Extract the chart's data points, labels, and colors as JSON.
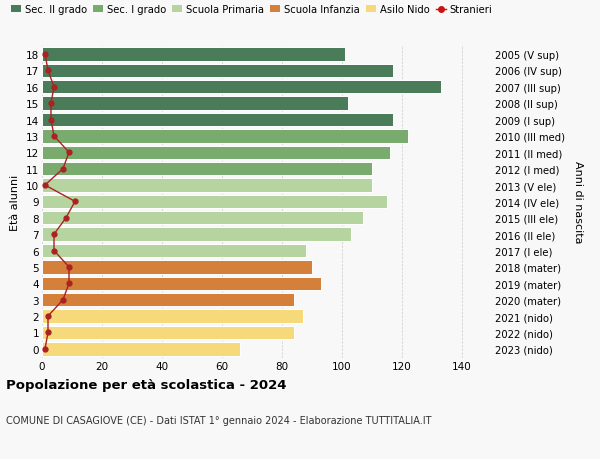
{
  "ages": [
    18,
    17,
    16,
    15,
    14,
    13,
    12,
    11,
    10,
    9,
    8,
    7,
    6,
    5,
    4,
    3,
    2,
    1,
    0
  ],
  "right_labels": [
    "2005 (V sup)",
    "2006 (IV sup)",
    "2007 (III sup)",
    "2008 (II sup)",
    "2009 (I sup)",
    "2010 (III med)",
    "2011 (II med)",
    "2012 (I med)",
    "2013 (V ele)",
    "2014 (IV ele)",
    "2015 (III ele)",
    "2016 (II ele)",
    "2017 (I ele)",
    "2018 (mater)",
    "2019 (mater)",
    "2020 (mater)",
    "2021 (nido)",
    "2022 (nido)",
    "2023 (nido)"
  ],
  "bar_values": [
    101,
    117,
    133,
    102,
    117,
    122,
    116,
    110,
    110,
    115,
    107,
    103,
    88,
    90,
    93,
    84,
    87,
    84,
    66
  ],
  "stranieri_values": [
    1,
    2,
    4,
    3,
    3,
    4,
    9,
    7,
    1,
    11,
    8,
    4,
    4,
    9,
    9,
    7,
    2,
    2,
    1
  ],
  "bar_colors": {
    "sec2": "#4a7c59",
    "sec1": "#7aab6e",
    "primaria": "#b5d4a0",
    "infanzia": "#d4803a",
    "nido": "#f5d97a"
  },
  "category_ages": {
    "sec2": [
      14,
      15,
      16,
      17,
      18
    ],
    "sec1": [
      11,
      12,
      13
    ],
    "primaria": [
      6,
      7,
      8,
      9,
      10
    ],
    "infanzia": [
      3,
      4,
      5
    ],
    "nido": [
      0,
      1,
      2
    ]
  },
  "title": "Popolazione per età scolastica - 2024",
  "subtitle": "COMUNE DI CASAGIOVE (CE) - Dati ISTAT 1° gennaio 2024 - Elaborazione TUTTITALIA.IT",
  "ylabel_left": "Età alunni",
  "ylabel_right": "Anni di nascita",
  "xlim": [
    0,
    150
  ],
  "xticks": [
    0,
    20,
    40,
    60,
    80,
    100,
    120,
    140
  ],
  "legend_labels": [
    "Sec. II grado",
    "Sec. I grado",
    "Scuola Primaria",
    "Scuola Infanzia",
    "Asilo Nido",
    "Stranieri"
  ],
  "legend_colors": [
    "#4a7c59",
    "#7aab6e",
    "#b5d4a0",
    "#d4803a",
    "#f5d97a",
    "#cc1111"
  ],
  "stranieri_line_color": "#aa2222",
  "bg_color": "#f8f8f8",
  "bar_height": 0.82
}
